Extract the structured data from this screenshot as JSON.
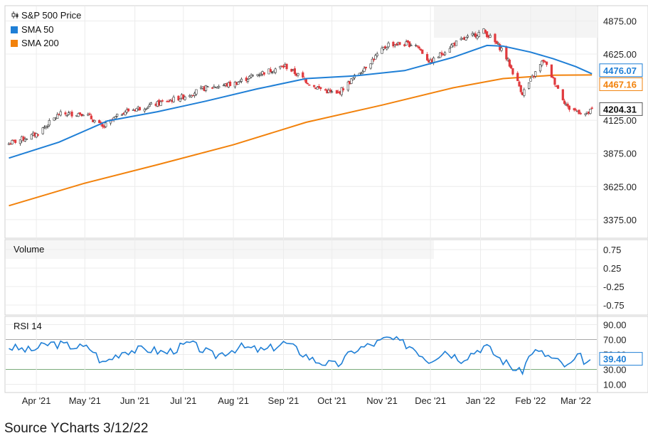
{
  "source_note": "Source YCharts 3/12/22",
  "colors": {
    "price_up": "#333333",
    "price_down": "#e03a3e",
    "sma50": "#1f7fd6",
    "sma200": "#f2820c",
    "rsi": "#1f7fd6",
    "grid": "#ececec"
  },
  "chart_data": [
    {
      "type": "candlestick",
      "panel": "price",
      "legend": [
        {
          "label": "S&P 500 Price",
          "icon": "candlestick-icon"
        },
        {
          "label": "SMA 50",
          "color": "#1f7fd6"
        },
        {
          "label": "SMA 200",
          "color": "#f2820c"
        }
      ],
      "ylim": [
        3240,
        4985
      ],
      "yticks": [
        "4875.00",
        "4625.00",
        "4375.00",
        "4125.00",
        "3875.00",
        "3625.00",
        "3375.00"
      ],
      "ytick_values": [
        4875,
        4625,
        4375,
        4125,
        3875,
        3625,
        3375
      ],
      "xticks": [
        "Apr '21",
        "May '21",
        "Jun '21",
        "Jul '21",
        "Aug '21",
        "Sep '21",
        "Oct '21",
        "Nov '21",
        "Dec '21",
        "Jan '22",
        "Feb '22",
        "Mar '22"
      ],
      "price_series": {
        "dates": [
          "2021-03-15",
          "2021-04-01",
          "2021-04-15",
          "2021-05-01",
          "2021-05-12",
          "2021-05-25",
          "2021-06-15",
          "2021-06-30",
          "2021-07-15",
          "2021-08-01",
          "2021-08-15",
          "2021-09-02",
          "2021-09-20",
          "2021-10-04",
          "2021-10-20",
          "2021-11-05",
          "2021-11-22",
          "2021-12-01",
          "2021-12-15",
          "2022-01-03",
          "2022-01-15",
          "2022-01-27",
          "2022-02-09",
          "2022-02-24",
          "2022-03-08",
          "2022-03-11"
        ],
        "close": [
          3950,
          4020,
          4170,
          4180,
          4070,
          4190,
          4250,
          4300,
          4370,
          4400,
          4470,
          4535,
          4380,
          4320,
          4510,
          4700,
          4700,
          4560,
          4700,
          4800,
          4650,
          4330,
          4580,
          4220,
          4170,
          4204.31
        ]
      },
      "sma50": {
        "dates": [
          "2021-03-15",
          "2021-04-15",
          "2021-05-15",
          "2021-06-15",
          "2021-07-15",
          "2021-08-15",
          "2021-09-15",
          "2021-10-15",
          "2021-11-15",
          "2021-12-15",
          "2022-01-05",
          "2022-01-15",
          "2022-02-01",
          "2022-02-15",
          "2022-03-01",
          "2022-03-11"
        ],
        "values": [
          3840,
          3960,
          4120,
          4190,
          4270,
          4360,
          4440,
          4460,
          4500,
          4600,
          4690,
          4685,
          4640,
          4590,
          4530,
          4476.07
        ]
      },
      "sma200": {
        "dates": [
          "2021-03-15",
          "2021-05-01",
          "2021-06-15",
          "2021-08-01",
          "2021-09-15",
          "2021-11-01",
          "2021-12-15",
          "2022-01-15",
          "2022-02-15",
          "2022-03-11"
        ],
        "values": [
          3480,
          3650,
          3790,
          3940,
          4110,
          4240,
          4370,
          4440,
          4465,
          4467.16
        ]
      },
      "last_labels": {
        "sma50": "4476.07",
        "sma200": "4467.16",
        "price": "4204.31"
      }
    },
    {
      "type": "bar",
      "panel": "volume",
      "title": "Volume",
      "yticks": [
        "0.75",
        "0.25",
        "-0.25",
        "-0.75"
      ],
      "ytick_values": [
        0.75,
        0.25,
        -0.25,
        -0.75
      ],
      "ylim": [
        -1.0,
        1.0
      ],
      "values": []
    },
    {
      "type": "line",
      "panel": "rsi",
      "title": "RSI 14",
      "ylim": [
        0,
        100
      ],
      "yticks": [
        "90.00",
        "70.00",
        "50.00",
        "30.00",
        "10.00"
      ],
      "ytick_values": [
        90,
        70,
        50,
        30,
        10
      ],
      "bands": [
        70,
        30
      ],
      "last_label": "39.40",
      "dates": [
        "2021-03-15",
        "2021-03-28",
        "2021-04-10",
        "2021-04-20",
        "2021-05-05",
        "2021-05-12",
        "2021-05-25",
        "2021-06-10",
        "2021-06-20",
        "2021-07-05",
        "2021-07-20",
        "2021-08-05",
        "2021-08-20",
        "2021-09-02",
        "2021-09-20",
        "2021-10-04",
        "2021-10-15",
        "2021-10-28",
        "2021-11-05",
        "2021-11-20",
        "2021-11-30",
        "2021-12-10",
        "2021-12-20",
        "2022-01-04",
        "2022-01-12",
        "2022-01-26",
        "2022-02-02",
        "2022-02-10",
        "2022-02-24",
        "2022-03-03",
        "2022-03-09",
        "2022-03-11"
      ],
      "values": [
        60,
        55,
        65,
        62,
        58,
        38,
        55,
        57,
        52,
        65,
        48,
        60,
        55,
        66,
        42,
        35,
        56,
        65,
        72,
        60,
        42,
        55,
        44,
        62,
        46,
        25,
        55,
        50,
        33,
        48,
        37,
        39.4
      ]
    }
  ],
  "panels": {
    "price_legend": [
      "S&P 500 Price",
      "SMA 50",
      "SMA 200"
    ],
    "volume_title": "Volume",
    "rsi_title": "RSI 14"
  }
}
